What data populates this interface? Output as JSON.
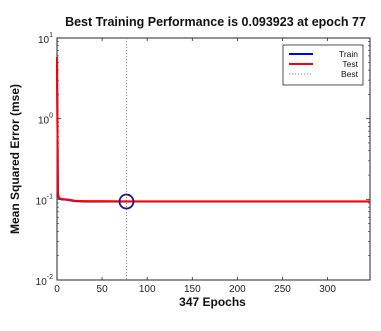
{
  "chart_data": {
    "type": "line",
    "title": "Best Training Performance is 0.093923 at epoch 77",
    "xlabel": "347 Epochs",
    "ylabel": "Mean Squared Error  (mse)",
    "xlim": [
      0,
      347
    ],
    "ylim": [
      0.01,
      10
    ],
    "yscale": "log",
    "grid": false,
    "legend_position": "top-right",
    "x_ticks": [
      0,
      50,
      100,
      150,
      200,
      250,
      300
    ],
    "y_ticks": [
      {
        "value": 10,
        "base": "10",
        "exp": "1"
      },
      {
        "value": 1,
        "base": "10",
        "exp": "0"
      },
      {
        "value": 0.1,
        "base": "10",
        "exp": "-1"
      },
      {
        "value": 0.01,
        "base": "10",
        "exp": "-2"
      }
    ],
    "series": [
      {
        "name": "Train",
        "color": "#0000ff",
        "style": "solid",
        "x": [
          0,
          1,
          2,
          3,
          5,
          10,
          15,
          20,
          30,
          50,
          77,
          100,
          150,
          200,
          250,
          300,
          347
        ],
        "y": [
          5.5,
          0.12,
          0.104,
          0.102,
          0.1,
          0.099,
          0.097,
          0.095,
          0.094,
          0.094,
          0.093923,
          0.0939,
          0.0939,
          0.0939,
          0.0939,
          0.0939,
          0.0939
        ]
      },
      {
        "name": "Test",
        "color": "#ff0000",
        "style": "solid",
        "x": [
          0,
          1,
          2,
          3,
          5,
          10,
          15,
          20,
          30,
          50,
          77,
          100,
          150,
          200,
          250,
          300,
          347
        ],
        "y": [
          5.8,
          0.12,
          0.105,
          0.103,
          0.101,
          0.1,
          0.098,
          0.096,
          0.095,
          0.095,
          0.0945,
          0.0944,
          0.0944,
          0.0944,
          0.0944,
          0.0944,
          0.0944
        ]
      }
    ],
    "best": {
      "name": "Best",
      "epoch": 77,
      "value": 0.093923,
      "color": "#888888",
      "style": "dotted",
      "marker_color": "#1a1a8a"
    }
  }
}
